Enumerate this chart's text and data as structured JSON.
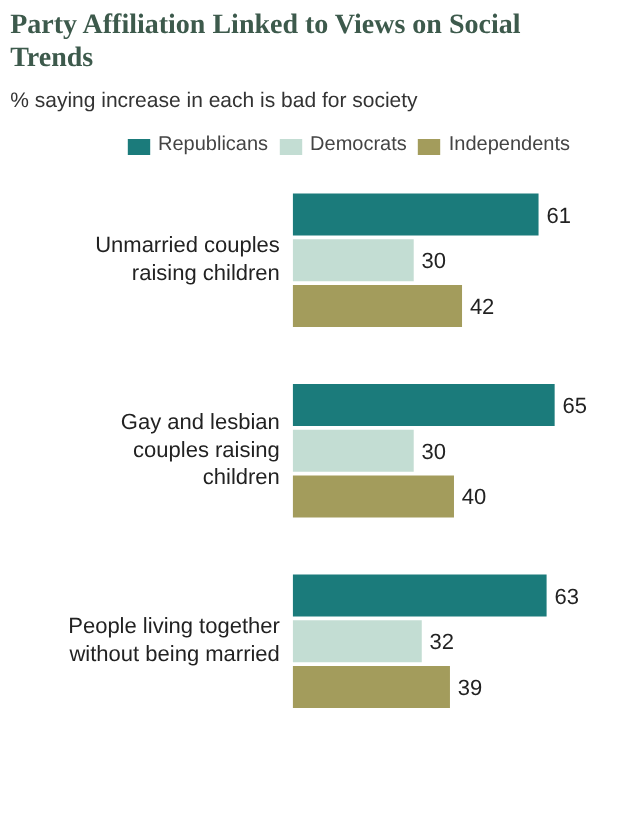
{
  "chart_data": {
    "type": "bar",
    "orientation": "horizontal",
    "title": "Party Affiliation Linked to Views on Social Trends",
    "subtitle": "% saying increase in each is bad for society",
    "categories": [
      "Unmarried couples raising children",
      "Gay and lesbian couples raising children",
      "People living together without being married"
    ],
    "series": [
      {
        "name": "Republicans",
        "color": "#1b7b7b",
        "values": [
          61,
          65,
          63
        ]
      },
      {
        "name": "Democrats",
        "color": "#c3ddd3",
        "values": [
          30,
          30,
          32
        ]
      },
      {
        "name": "Independents",
        "color": "#a39c5c",
        "values": [
          42,
          40,
          39
        ]
      }
    ],
    "data_labels": true,
    "legend": "top",
    "grid": false
  }
}
